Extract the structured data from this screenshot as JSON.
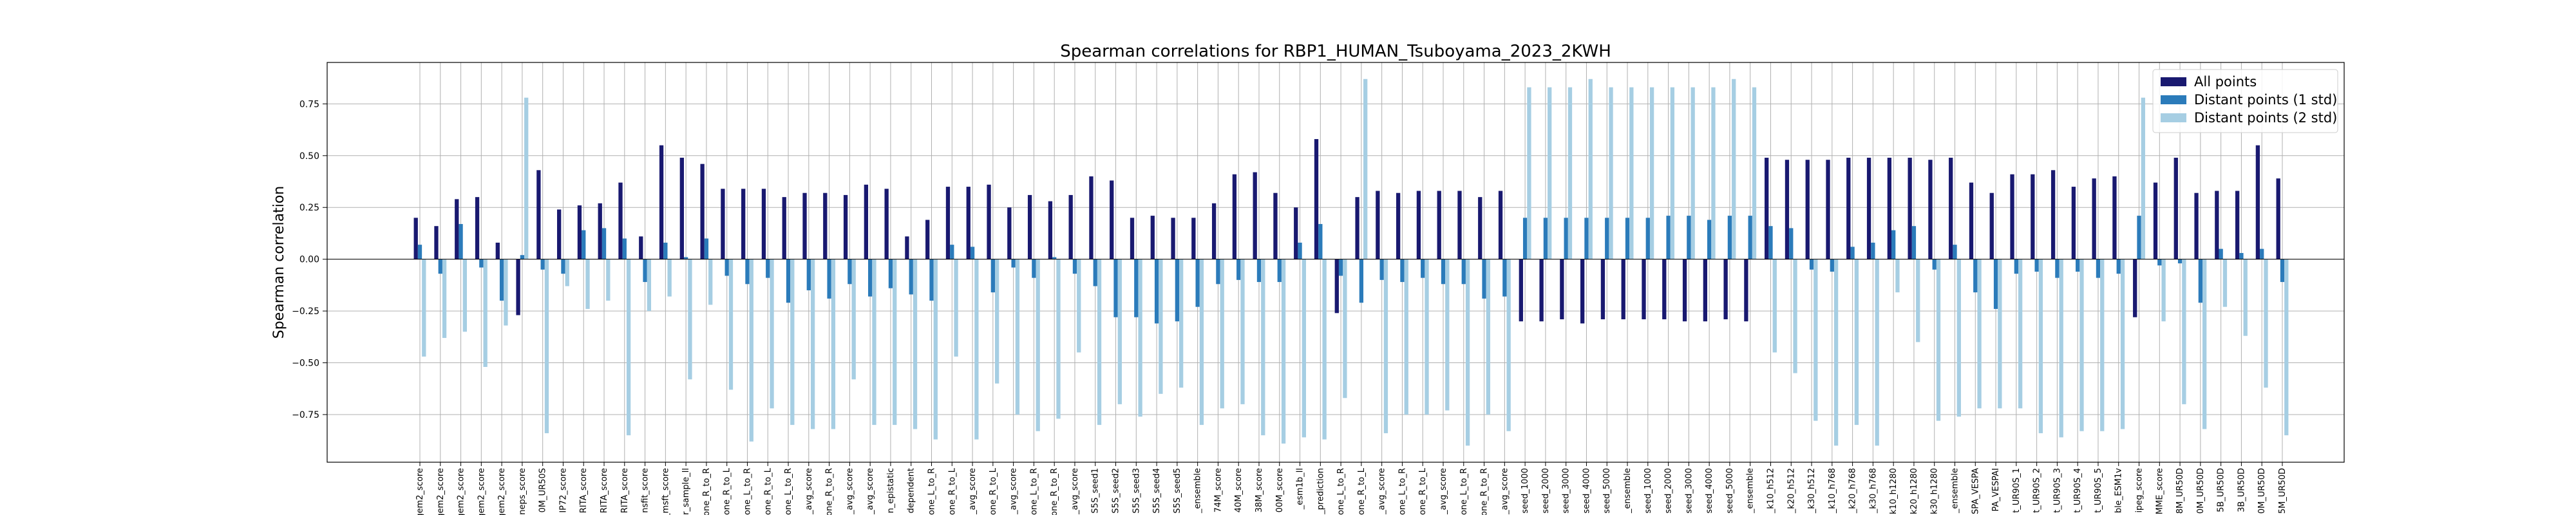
{
  "chart_data": {
    "type": "bar",
    "title": "Spearman correlations for RBP1_HUMAN_Tsuboyama_2023_2KWH",
    "xlabel": "",
    "ylabel": "Spearman correlation",
    "ylim": [
      -0.98,
      0.95
    ],
    "yticks": [
      -0.75,
      -0.5,
      -0.25,
      0.0,
      0.25,
      0.5,
      0.75
    ],
    "ytick_labels": [
      "−0.75",
      "−0.50",
      "−0.25",
      "0.00",
      "0.25",
      "0.50",
      "0.75"
    ],
    "grid": true,
    "legend_position": "top-right",
    "categories": [
      "gem2_score",
      "gem2_score",
      "gem2_score",
      "gem2_score",
      "gem2_score",
      "eneps_score",
      "0M_UR50S",
      "IP72_score",
      "RITA_score",
      "RITA_score",
      "RITA_score",
      "nsfit_score",
      "r_msft_score",
      "r_sample_ll",
      "one_R_to_R",
      "one_R_to_L",
      "one_L_to_R",
      "one_R_to_L",
      "one_L_to_R",
      "_avg_score",
      "one_R_to_R",
      "_avg_score",
      "_avg_score",
      "n_epistatic",
      "dependent",
      "one_L_to_R",
      "one_R_to_L",
      "_avg_score",
      "one_R_to_L",
      "_avg_score",
      "one_L_to_R",
      "one_R_to_R",
      "_avg_score",
      "S5S_seed1",
      "S5S_seed2",
      "S5S_seed3",
      "S5S_seed4",
      "S5S_seed5",
      "_ensemble",
      "74M_score",
      "40M_score",
      "38M_score",
      "00M_score",
      "_esm1b_ll",
      "_prediction",
      "one_L_to_R",
      "one_R_to_L",
      "_avg_score",
      "one_L_to_R",
      "one_R_to_L",
      "_avg_score",
      "one_L_to_R",
      "one_R_to_R",
      "_avg_score",
      "seed_1000",
      "seed_2000",
      "seed_3000",
      "seed_4000",
      "seed_5000",
      "_ensemble",
      "seed_1000",
      "seed_2000",
      "seed_3000",
      "seed_4000",
      "seed_5000",
      "_ensemble",
      "_k10_h512",
      "_k20_h512",
      "_k30_h512",
      "_k10_h768",
      "_k20_h768",
      "_k30_h768",
      "k10_h1280",
      "k20_h1280",
      "k30_h1280",
      "_ensemble",
      "SPA_VESPA",
      "PA_VESPAI",
      "t_UR90S_1",
      "t_UR90S_2",
      "t_UR90S_3",
      "t_UR90S_4",
      "t_UR90S_5",
      "ble_ESM1v",
      "ipeg_score",
      "MME_score",
      "8M_UR50D",
      "0M_UR50D",
      "5B_UR50D",
      "3B_UR50D",
      "0M_UR50D",
      "5M_UR50D"
    ],
    "series": [
      {
        "name": "All points",
        "color": "#191970",
        "values": [
          0.2,
          0.16,
          0.29,
          0.3,
          0.08,
          -0.27,
          0.43,
          0.24,
          0.26,
          0.27,
          0.37,
          0.11,
          0.55,
          0.49,
          0.46,
          0.34,
          0.34,
          0.34,
          0.3,
          0.32,
          0.32,
          0.31,
          0.36,
          0.34,
          0.11,
          0.19,
          0.35,
          0.35,
          0.36,
          0.25,
          0.31,
          0.28,
          0.31,
          0.4,
          0.38,
          0.2,
          0.21,
          0.2,
          0.2,
          0.27,
          0.41,
          0.42,
          0.32,
          0.25,
          0.58,
          -0.26,
          0.3,
          0.33,
          0.32,
          0.33,
          0.33,
          0.33,
          0.3,
          0.33,
          -0.3,
          -0.3,
          -0.29,
          -0.31,
          -0.29,
          -0.29,
          -0.29,
          -0.29,
          -0.3,
          -0.3,
          -0.29,
          -0.3,
          0.49,
          0.48,
          0.48,
          0.48,
          0.49,
          0.49,
          0.49,
          0.49,
          0.48,
          0.49,
          0.37,
          0.32,
          0.41,
          0.41,
          0.43,
          0.35,
          0.39,
          0.4,
          -0.28,
          0.37,
          0.49,
          0.32,
          0.33,
          0.33,
          0.55,
          0.39
        ]
      },
      {
        "name": "Distant points (1 std)",
        "color": "#2b7bba",
        "values": [
          0.07,
          -0.07,
          0.17,
          -0.04,
          -0.2,
          0.02,
          -0.05,
          -0.07,
          0.14,
          0.15,
          0.1,
          -0.11,
          0.08,
          0.01,
          0.1,
          -0.08,
          -0.12,
          -0.09,
          -0.21,
          -0.15,
          -0.19,
          -0.12,
          -0.18,
          -0.14,
          -0.17,
          -0.2,
          0.07,
          0.06,
          -0.16,
          -0.04,
          -0.09,
          0.01,
          -0.07,
          -0.13,
          -0.28,
          -0.28,
          -0.31,
          -0.3,
          -0.23,
          -0.12,
          -0.1,
          -0.11,
          -0.11,
          0.08,
          0.17,
          -0.08,
          -0.21,
          -0.1,
          -0.11,
          -0.09,
          -0.12,
          -0.12,
          -0.19,
          -0.18,
          0.2,
          0.2,
          0.2,
          0.2,
          0.2,
          0.2,
          0.2,
          0.21,
          0.21,
          0.19,
          0.21,
          0.21,
          0.16,
          0.15,
          -0.05,
          -0.06,
          0.06,
          0.08,
          0.14,
          0.16,
          -0.05,
          0.07,
          -0.16,
          -0.24,
          -0.07,
          -0.06,
          -0.09,
          -0.06,
          -0.09,
          -0.07,
          0.21,
          -0.03,
          -0.02,
          -0.21,
          0.05,
          0.03,
          0.05,
          -0.11
        ]
      },
      {
        "name": "Distant points (2 std)",
        "color": "#a6cee3",
        "values": [
          -0.47,
          -0.38,
          -0.35,
          -0.52,
          -0.32,
          0.78,
          -0.84,
          -0.13,
          -0.24,
          -0.2,
          -0.85,
          -0.25,
          -0.18,
          -0.58,
          -0.22,
          -0.63,
          -0.88,
          -0.72,
          -0.8,
          -0.82,
          -0.82,
          -0.58,
          -0.8,
          -0.8,
          -0.82,
          -0.87,
          -0.47,
          -0.87,
          -0.6,
          -0.75,
          -0.83,
          -0.77,
          -0.45,
          -0.8,
          -0.7,
          -0.76,
          -0.65,
          -0.62,
          -0.8,
          -0.72,
          -0.7,
          -0.85,
          -0.89,
          -0.86,
          -0.87,
          -0.67,
          0.87,
          -0.84,
          -0.75,
          -0.75,
          -0.73,
          -0.9,
          -0.75,
          -0.83,
          0.83,
          0.83,
          0.83,
          0.87,
          0.83,
          0.83,
          0.83,
          0.83,
          0.83,
          0.83,
          0.87,
          0.83,
          -0.45,
          -0.55,
          -0.78,
          -0.9,
          -0.8,
          -0.9,
          -0.16,
          -0.4,
          -0.78,
          -0.76,
          -0.72,
          -0.72,
          -0.72,
          -0.84,
          -0.86,
          -0.83,
          -0.83,
          -0.82,
          0.78,
          -0.3,
          -0.7,
          -0.82,
          -0.23,
          -0.37,
          -0.62,
          -0.85
        ]
      }
    ]
  }
}
